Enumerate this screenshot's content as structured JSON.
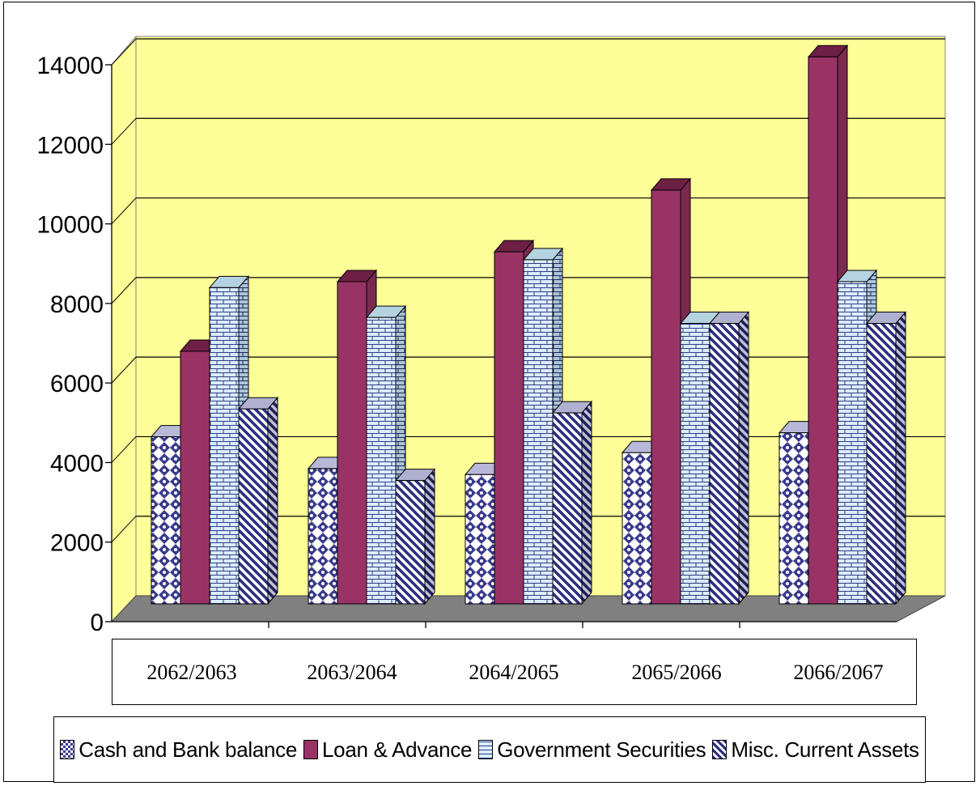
{
  "chart_data": {
    "type": "bar",
    "categories": [
      "2062/2063",
      "2063/2064",
      "2064/2065",
      "2065/2066",
      "2066/2067"
    ],
    "series": [
      {
        "name": "Cash and Bank balance",
        "values": [
          4200,
          3400,
          3250,
          3800,
          4300
        ],
        "color": "#3a3a8c",
        "pattern": "checker"
      },
      {
        "name": "Loan & Advance",
        "values": [
          6350,
          8100,
          8850,
          10400,
          13750
        ],
        "color": "#993366",
        "pattern": "solid"
      },
      {
        "name": "Government Securities",
        "values": [
          7950,
          7200,
          8650,
          7050,
          8100
        ],
        "color": "#c8e6f5",
        "pattern": "brick"
      },
      {
        "name": "Misc. Current Assets",
        "values": [
          4900,
          3100,
          4800,
          7050,
          7050
        ],
        "color": "#2e2e80",
        "pattern": "diagonal"
      }
    ],
    "yticks": [
      0,
      2000,
      4000,
      6000,
      8000,
      10000,
      12000,
      14000
    ],
    "ylim": [
      0,
      14000
    ],
    "grid": true,
    "legend": "bottom",
    "colors": {
      "plot_wall": "#ffff99",
      "floor": "#808080"
    }
  }
}
